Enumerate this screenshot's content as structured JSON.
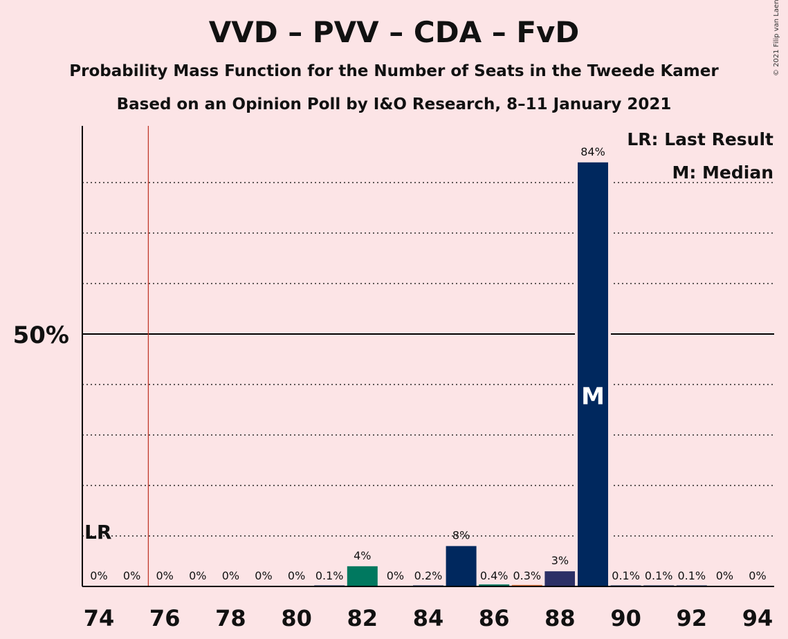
{
  "chart_data": {
    "type": "bar",
    "title": "VVD – PVV – CDA – FvD",
    "subtitle": "Probability Mass Function for the Number of Seats in the Tweede Kamer",
    "subtitle2": "Based on an Opinion Poll by I&O Research, 8–11 January 2021",
    "copyright": "© 2021 Filip van Laenen",
    "x": [
      74,
      75,
      76,
      77,
      78,
      79,
      80,
      81,
      82,
      83,
      84,
      85,
      86,
      87,
      88,
      89,
      90,
      91,
      92,
      93,
      94
    ],
    "values": [
      0,
      0,
      0,
      0,
      0,
      0,
      0,
      0.1,
      4,
      0,
      0.2,
      8,
      0.4,
      0.3,
      3,
      84,
      0.1,
      0.1,
      0.1,
      0,
      0
    ],
    "labels": [
      "0%",
      "0%",
      "0%",
      "0%",
      "0%",
      "0%",
      "0%",
      "0.1%",
      "4%",
      "0%",
      "0.2%",
      "8%",
      "0.4%",
      "0.3%",
      "3%",
      "84%",
      "0.1%",
      "0.1%",
      "0.1%",
      "0%",
      "0%"
    ],
    "bar_colors": [
      "#00285e",
      "#00285e",
      "#00285e",
      "#00285e",
      "#00285e",
      "#00285e",
      "#00285e",
      "#00285e",
      "#00785f",
      "#00285e",
      "#00285e",
      "#00285e",
      "#00785f",
      "#e26f36",
      "#2c3066",
      "#00285e",
      "#00285e",
      "#00285e",
      "#00285e",
      "#00285e",
      "#00285e"
    ],
    "xticks": [
      74,
      76,
      78,
      80,
      82,
      84,
      86,
      88,
      90,
      92,
      94
    ],
    "ylim": [
      0,
      91
    ],
    "ytick_label": "50%",
    "ytick_value": 50,
    "dotted_gridlines": [
      10,
      20,
      30,
      40,
      60,
      70,
      80
    ],
    "last_result": 75.5,
    "last_result_label": "LR",
    "median": 89,
    "median_label": "M",
    "legend": [
      "LR: Last Result",
      "M: Median"
    ],
    "legend_position": "top-right",
    "colors": {
      "background": "#fce4e6",
      "lr_line": "#c0392b",
      "axis": "#000000"
    }
  }
}
